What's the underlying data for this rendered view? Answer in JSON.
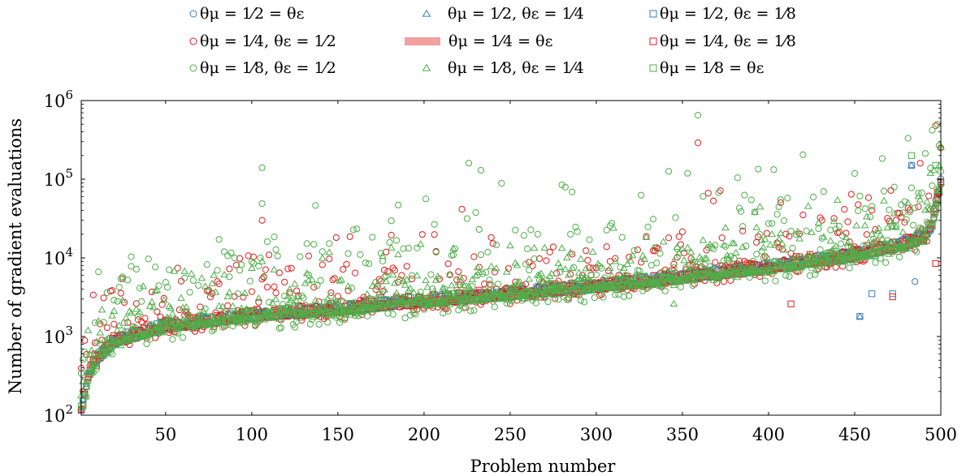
{
  "chart_data": {
    "type": "scatter",
    "xlabel": "Problem number",
    "ylabel": "Number of gradient evaluations",
    "xlim": [
      1,
      500
    ],
    "ylim": [
      100,
      1000000
    ],
    "yscale": "log",
    "grid": false,
    "legend_position": "top",
    "x_ticks": [
      50,
      100,
      150,
      200,
      250,
      300,
      350,
      400,
      450,
      500
    ],
    "x_tick_labels": [
      "50",
      "100",
      "150",
      "200",
      "250",
      "300",
      "350",
      "400",
      "450",
      "500"
    ],
    "y_ticks": [
      100,
      1000,
      10000,
      100000,
      1000000
    ],
    "y_tick_labels": [
      {
        "base": "10",
        "exp": "2"
      },
      {
        "base": "10",
        "exp": "3"
      },
      {
        "base": "10",
        "exp": "4"
      },
      {
        "base": "10",
        "exp": "5"
      },
      {
        "base": "10",
        "exp": "6"
      }
    ],
    "baseline": {
      "x": [
        1,
        2,
        3,
        5,
        10,
        20,
        50,
        100,
        150,
        200,
        250,
        300,
        350,
        400,
        450,
        480,
        490,
        495,
        500
      ],
      "y": [
        110,
        130,
        180,
        300,
        500,
        800,
        1250,
        1700,
        2050,
        2600,
        3200,
        4000,
        5200,
        7000,
        10000,
        14000,
        17000,
        25000,
        90000
      ]
    },
    "series": [
      {
        "name": "θμ = 1/2 = θε",
        "marker": "circle",
        "color": "#377eb8",
        "spread": 0.1,
        "rng": 0.02,
        "seed": 11,
        "extra": [
          {
            "x": 485,
            "y": 5000
          }
        ]
      },
      {
        "name": "θμ = 1/2, θε = 1/4",
        "marker": "triangle",
        "color": "#377eb8",
        "spread": 0.1,
        "rng": 0.02,
        "seed": 23,
        "extra": [
          {
            "x": 453,
            "y": 1800
          },
          {
            "x": 483,
            "y": 150000
          }
        ]
      },
      {
        "name": "θμ = 1/2, θε = 1/8",
        "marker": "square",
        "color": "#377eb8",
        "spread": 0.1,
        "rng": 0.02,
        "seed": 37,
        "extra": [
          {
            "x": 453,
            "y": 1800
          },
          {
            "x": 483,
            "y": 150000
          },
          {
            "x": 460,
            "y": 3500
          },
          {
            "x": 472,
            "y": 3500
          }
        ]
      },
      {
        "name": "θμ = 1/4, θε = 1/2",
        "marker": "circle",
        "color": "#e41a1c",
        "spread": 0.5,
        "rng": 0.2,
        "seed": 41,
        "extra": [
          {
            "x": 14,
            "y": 3100
          },
          {
            "x": 359,
            "y": 290000
          },
          {
            "x": 497,
            "y": 480000
          },
          {
            "x": 500,
            "y": 250000
          },
          {
            "x": 106,
            "y": 30000
          }
        ]
      },
      {
        "name": "θμ = 1/4 = θε",
        "marker": "band",
        "color": "#f2a0a0",
        "spread": 0.08,
        "rng": 0.0,
        "seed": 53,
        "extra": []
      },
      {
        "name": "θμ = 1/4, θε = 1/8",
        "marker": "square",
        "color": "#e41a1c",
        "spread": 0.12,
        "rng": 0.03,
        "seed": 59,
        "extra": [
          {
            "x": 497,
            "y": 8500
          },
          {
            "x": 472,
            "y": 3200
          },
          {
            "x": 413,
            "y": 2600
          }
        ]
      },
      {
        "name": "θμ = 1/8, θε = 1/2",
        "marker": "circle",
        "color": "#4daf4a",
        "spread": 0.75,
        "rng": 0.35,
        "seed": 67,
        "extra": [
          {
            "x": 359,
            "y": 650000
          },
          {
            "x": 106,
            "y": 140000
          },
          {
            "x": 226,
            "y": 160000
          },
          {
            "x": 233,
            "y": 130000
          },
          {
            "x": 498,
            "y": 500000
          },
          {
            "x": 495,
            "y": 420000
          },
          {
            "x": 30,
            "y": 7800
          }
        ]
      },
      {
        "name": "θμ = 1/8, θε = 1/4",
        "marker": "triangle",
        "color": "#4daf4a",
        "spread": 0.4,
        "rng": 0.12,
        "seed": 71,
        "extra": [
          {
            "x": 499,
            "y": 150000
          },
          {
            "x": 496,
            "y": 130000
          },
          {
            "x": 345,
            "y": 2600
          }
        ]
      },
      {
        "name": "θμ = 1/8 = θε",
        "marker": "square",
        "color": "#4daf4a",
        "spread": 0.1,
        "rng": 0.02,
        "seed": 83,
        "extra": [
          {
            "x": 497,
            "y": 150000
          },
          {
            "x": 483,
            "y": 200000
          }
        ]
      }
    ],
    "legend": [
      {
        "marker": "circle",
        "color": "#377eb8",
        "label": "θμ = 1⁄2 = θε"
      },
      {
        "marker": "triangle",
        "color": "#377eb8",
        "label": "θμ = 1⁄2, θε = 1⁄4"
      },
      {
        "marker": "square",
        "color": "#377eb8",
        "label": "θμ = 1⁄2, θε = 1⁄8"
      },
      {
        "marker": "circle",
        "color": "#e41a1c",
        "label": "θμ = 1⁄4, θε = 1⁄2"
      },
      {
        "marker": "band",
        "color": "#f2a0a0",
        "label": "θμ = 1⁄4 = θε"
      },
      {
        "marker": "square",
        "color": "#e41a1c",
        "label": "θμ = 1⁄4, θε = 1⁄8"
      },
      {
        "marker": "circle",
        "color": "#4daf4a",
        "label": "θμ = 1⁄8, θε = 1⁄2"
      },
      {
        "marker": "triangle",
        "color": "#4daf4a",
        "label": "θμ = 1⁄8, θε = 1⁄4"
      },
      {
        "marker": "square",
        "color": "#4daf4a",
        "label": "θμ = 1⁄8 = θε"
      }
    ]
  }
}
